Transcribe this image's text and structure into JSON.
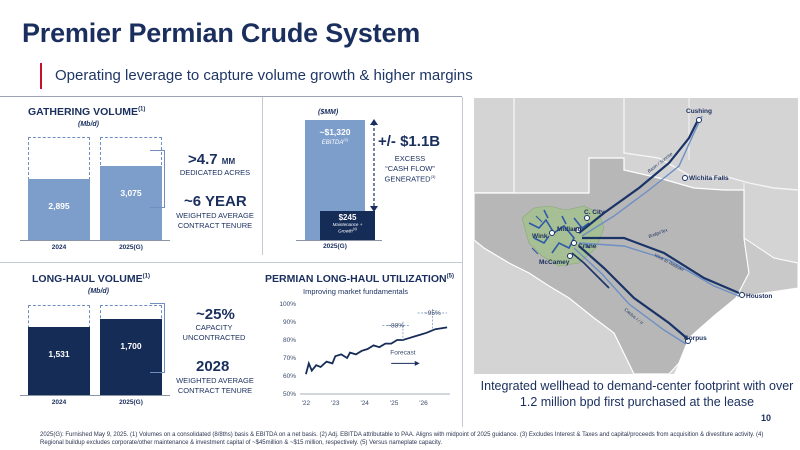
{
  "header": {
    "title": "Premier Permian Crude System",
    "subtitle": "Operating leverage to capture volume growth & higher margins"
  },
  "gathering": {
    "title": "GATHERING VOLUME",
    "title_sup": "(1)",
    "unit": "(Mb/d)",
    "bars": [
      {
        "label": "2024",
        "value": "2,895",
        "fill_fraction": 0.59
      },
      {
        "label": "2025(G)",
        "value": "3,075",
        "fill_fraction": 0.72
      }
    ],
    "stat1_value": ">4.7",
    "stat1_unit": "MM",
    "stat1_desc": "DEDICATED ACRES",
    "stat2_value": "~6 YEAR",
    "stat2_desc1": "WEIGHTED AVERAGE",
    "stat2_desc2": "CONTRACT TENURE"
  },
  "cashflow": {
    "unit": "($MM)",
    "ebitda_value": "~$1,320",
    "ebitda_label": "EBITDA",
    "ebitda_sup": "(2)",
    "maint_value": "$245",
    "maint_label1": "Maintenance +",
    "maint_label2": "Growth",
    "maint_sup": "(4)",
    "x_label": "2025(G)",
    "excess_value": "+/- $1.1B",
    "excess_line1": "EXCESS",
    "excess_line2": "“CASH FLOW”",
    "excess_line3": "GENERATED",
    "excess_sup": "(3)"
  },
  "longhaul": {
    "title": "LONG-HAUL VOLUME",
    "title_sup": "(1)",
    "unit": "(Mb/d)",
    "bars": [
      {
        "label": "2024",
        "value": "1,531",
        "fill_fraction": 0.76
      },
      {
        "label": "2025(G)",
        "value": "1,700",
        "fill_fraction": 0.84
      }
    ],
    "stat1_value": "~25%",
    "stat1_desc1": "CAPACITY",
    "stat1_desc2": "UNCONTRACTED",
    "stat2_value": "2028",
    "stat2_desc1": "WEIGHTED AVERAGE",
    "stat2_desc2": "CONTRACT TENURE"
  },
  "utilization": {
    "title": "PERMIAN LONG-HAUL UTILIZATION",
    "title_sup": "(5)",
    "subtitle": "Improving market fundamentals",
    "forecast_label": "Forecast",
    "label_88": "~88%",
    "label_95": "~95%"
  },
  "chart_data": {
    "type": "line",
    "title": "PERMIAN LONG-HAUL UTILIZATION",
    "subtitle": "Improving market fundamentals",
    "x_tick_labels": [
      "'22",
      "'23",
      "'24",
      "'25",
      "'26"
    ],
    "y_tick_labels": [
      "50%",
      "60%",
      "70%",
      "80%",
      "90%",
      "100%"
    ],
    "ylim": [
      50,
      100
    ],
    "xlim": [
      2021.8,
      2026.9
    ],
    "series": [
      {
        "style": "solid",
        "x": [
          2022.0,
          2022.1,
          2022.2,
          2022.35,
          2022.5,
          2022.7,
          2022.9,
          2023.0,
          2023.2,
          2023.4,
          2023.5,
          2023.7,
          2023.9,
          2024.1,
          2024.3,
          2024.5,
          2024.7,
          2024.9,
          2025.1,
          2025.3,
          2025.5,
          2025.7,
          2025.9,
          2026.1,
          2026.4,
          2026.8
        ],
        "values": [
          61,
          67,
          63,
          66,
          65,
          68,
          67,
          71,
          72,
          70,
          73,
          72,
          74,
          75,
          77,
          76,
          78,
          78,
          80,
          80,
          81,
          82,
          83,
          84,
          86,
          87
        ]
      }
    ],
    "annotations": [
      "~88%",
      "~95%",
      "Forecast"
    ],
    "grid": false
  },
  "map": {
    "caption": "Integrated wellhead to demand-center footprint with over 1.2 million bpd first purchased at the lease",
    "cities": [
      "Cushing",
      "Wichita Falls",
      "C. City",
      "Midland",
      "Wink",
      "Crane",
      "McCamey",
      "Houston",
      "Corpus"
    ],
    "pipelines": [
      "Basin / Sunrise",
      "BridgeTex",
      "Wink to Webster",
      "Cactus I / II"
    ]
  },
  "footnote": "2025(G): Furnished May 9, 2025. (1) Volumes on a consolidated (8/8ths) basis & EBITDA on a net basis. (2) Adj. EBITDA attributable to PAA. Aligns with midpoint of 2025 guidance. (3) Excludes Interest & Taxes and capital/proceeds from acquisition & divestiture activity. (4) Regional buildup excludes corporate/other maintenance & investment capital of ~$45million & ~$15 million, respectively. (5) Versus nameplate capacity.",
  "page_number": "10",
  "colors": {
    "navy": "#152c57",
    "light_blue": "#7d9ecb",
    "accent_red": "#c8102e",
    "map_bg": "#d8d8d8"
  }
}
